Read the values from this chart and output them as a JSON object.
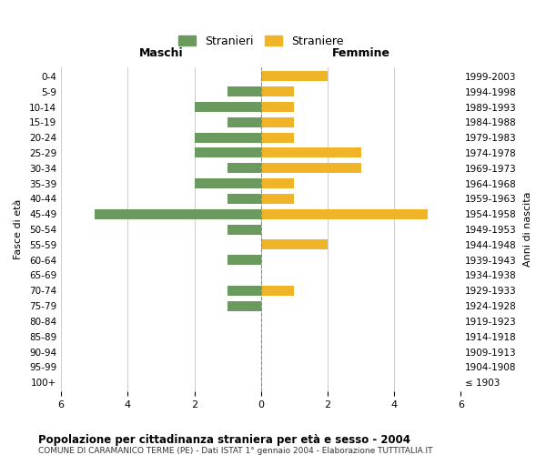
{
  "age_groups": [
    "100+",
    "95-99",
    "90-94",
    "85-89",
    "80-84",
    "75-79",
    "70-74",
    "65-69",
    "60-64",
    "55-59",
    "50-54",
    "45-49",
    "40-44",
    "35-39",
    "30-34",
    "25-29",
    "20-24",
    "15-19",
    "10-14",
    "5-9",
    "0-4"
  ],
  "birth_years": [
    "≤ 1903",
    "1904-1908",
    "1909-1913",
    "1914-1918",
    "1919-1923",
    "1924-1928",
    "1929-1933",
    "1934-1938",
    "1939-1943",
    "1944-1948",
    "1949-1953",
    "1954-1958",
    "1959-1963",
    "1964-1968",
    "1969-1973",
    "1974-1978",
    "1979-1983",
    "1984-1988",
    "1989-1993",
    "1994-1998",
    "1999-2003"
  ],
  "maschi": [
    0,
    0,
    0,
    0,
    0,
    1,
    1,
    0,
    1,
    0,
    1,
    5,
    1,
    2,
    1,
    2,
    2,
    1,
    2,
    1,
    0
  ],
  "femmine": [
    0,
    0,
    0,
    0,
    0,
    0,
    1,
    0,
    0,
    2,
    0,
    5,
    1,
    1,
    3,
    3,
    1,
    1,
    1,
    1,
    2
  ],
  "maschi_color": "#6a9a5e",
  "femmine_color": "#f0b429",
  "title": "Popolazione per cittadinanza straniera per età e sesso - 2004",
  "subtitle": "COMUNE DI CARAMANICO TERME (PE) - Dati ISTAT 1° gennaio 2004 - Elaborazione TUTTITALIA.IT",
  "ylabel_left": "Fasce di età",
  "ylabel_right": "Anni di nascita",
  "xlabel_left": "Maschi",
  "xlabel_right": "Femmine",
  "legend_stranieri": "Stranieri",
  "legend_straniere": "Straniere",
  "xlim": 6,
  "bg_color": "#ffffff",
  "grid_color": "#cccccc"
}
